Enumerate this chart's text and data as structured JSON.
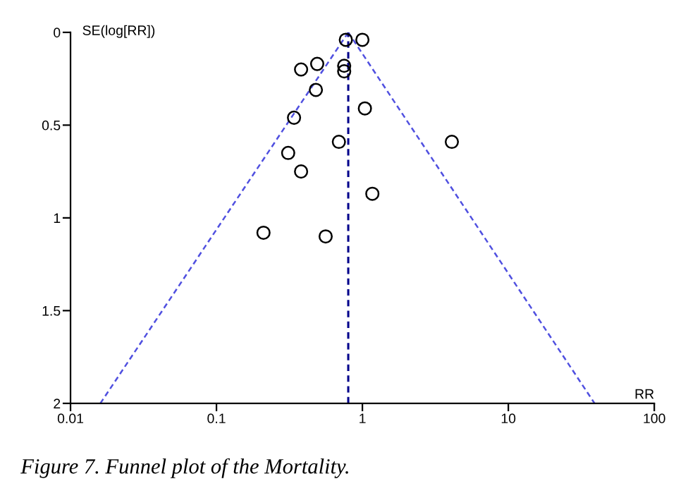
{
  "chart_data": {
    "type": "scatter",
    "xlabel": "RR",
    "ylabel": "SE(log[RR])",
    "annotations": [
      "Figure 7. Funnel plot of the Mortality."
    ],
    "log": "x",
    "xlim": [
      0.01,
      100
    ],
    "xticks": [
      0.01,
      0.1,
      1,
      10,
      100
    ],
    "ylim": [
      2,
      0
    ],
    "yticks": [
      0,
      0.5,
      1,
      1.5,
      2
    ],
    "grid": false,
    "legend": false,
    "series": [
      {
        "color": "#000000",
        "marker": "circle",
        "x": [
          0.77,
          1.0,
          0.38,
          0.49,
          0.75,
          0.75,
          0.48,
          0.34,
          1.04,
          4.1,
          0.69,
          0.31,
          0.38,
          1.17,
          0.21,
          0.56
        ],
        "values": [
          0.04,
          0.04,
          0.2,
          0.17,
          0.18,
          0.21,
          0.31,
          0.46,
          0.41,
          0.59,
          0.59,
          0.65,
          0.75,
          0.87,
          1.08,
          1.1
        ]
      },
      {
        "type": "line",
        "color": "#5050e0",
        "line_style": "dashed",
        "marker": "none",
        "x": [
          0.016,
          0.8
        ],
        "values": [
          2,
          0
        ]
      },
      {
        "type": "line",
        "color": "#5050e0",
        "line_style": "dashed",
        "marker": "none",
        "x": [
          0.8,
          39
        ],
        "values": [
          0,
          2
        ]
      }
    ],
    "ref_lines": [
      {
        "axis": "x",
        "value": 0.8,
        "color": "#00008b",
        "line_style": "dashed"
      }
    ]
  }
}
